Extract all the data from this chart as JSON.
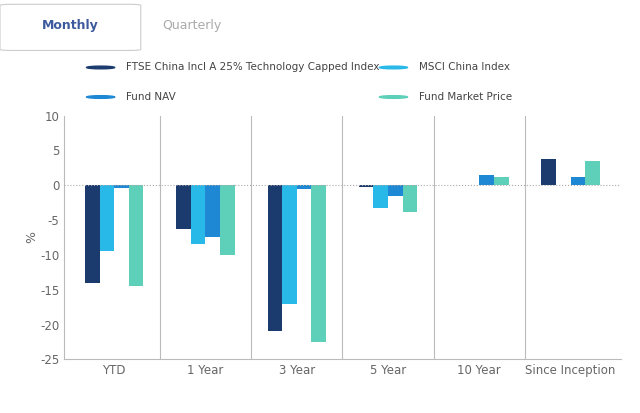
{
  "categories": [
    "YTD",
    "1 Year",
    "3 Year",
    "5 Year",
    "10 Year",
    "Since Inception"
  ],
  "series_order": [
    "FTSE China Incl A 25% Technology Capped Index",
    "MSCI China Index",
    "Fund NAV",
    "Fund Market Price"
  ],
  "series": {
    "FTSE China Incl A 25% Technology Capped Index": [
      -14.0,
      -6.3,
      -21.0,
      -0.3,
      null,
      3.8
    ],
    "MSCI China Index": [
      -9.5,
      -8.5,
      -17.0,
      -3.2,
      null,
      null
    ],
    "Fund NAV": [
      -0.4,
      -7.5,
      -0.5,
      -1.5,
      1.5,
      1.2
    ],
    "Fund Market Price": [
      -14.5,
      -10.0,
      -22.5,
      -3.8,
      1.2,
      3.5
    ]
  },
  "colors": {
    "FTSE China Incl A 25% Technology Capped Index": "#1b3a6e",
    "MSCI China Index": "#29b9e8",
    "Fund NAV": "#1e88d4",
    "Fund Market Price": "#5ecfb8"
  },
  "ylabel": "%",
  "ylim": [
    -25,
    10
  ],
  "yticks": [
    -25,
    -20,
    -15,
    -10,
    -5,
    0,
    5,
    10
  ],
  "background_color": "#ffffff",
  "tab_monthly": "Monthly",
  "tab_quarterly": "Quarterly"
}
